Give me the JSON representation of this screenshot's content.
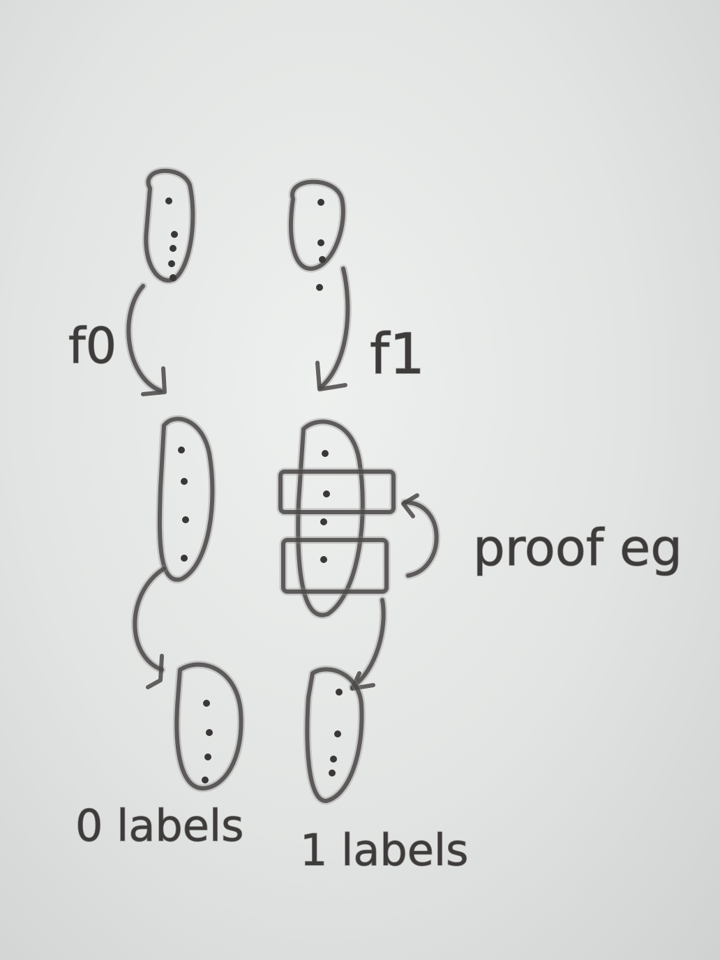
{
  "labels": {
    "f0": "f0",
    "f1": "f1",
    "zero_labels": "0 labels",
    "one_labels": "1 labels",
    "proof_eg": "proof eg"
  },
  "colors": {
    "board": "#e6e8e7",
    "marker": "#4a4846"
  }
}
